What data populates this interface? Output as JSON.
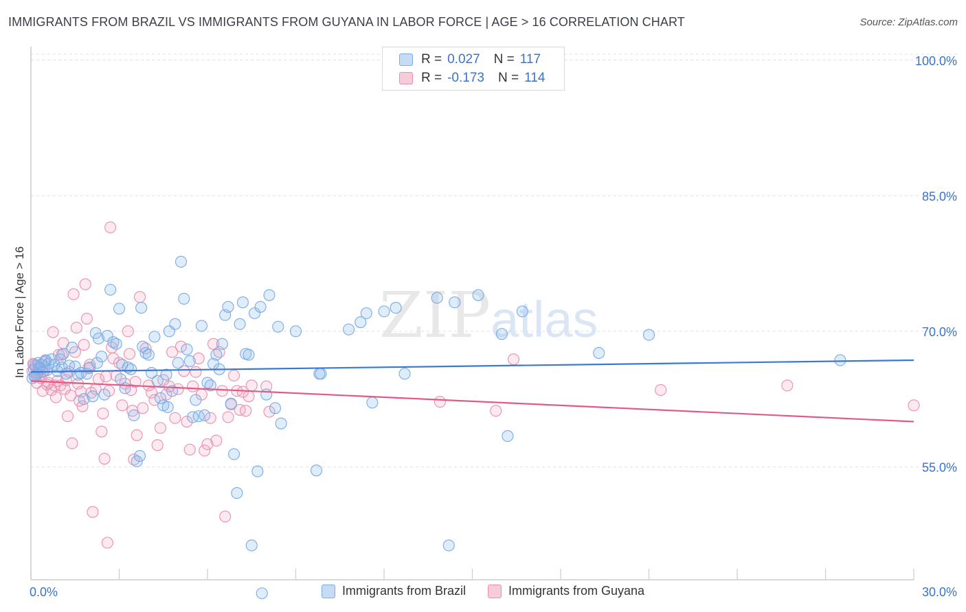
{
  "header": {
    "title": "IMMIGRANTS FROM BRAZIL VS IMMIGRANTS FROM GUYANA IN LABOR FORCE | AGE > 16 CORRELATION CHART",
    "source": "Source: ZipAtlas.com"
  },
  "watermark": {
    "zip": "ZIP",
    "atlas": "atlas"
  },
  "legend": {
    "rows": [
      {
        "r_label": "R = ",
        "r_value": "0.027",
        "n_label": "N = ",
        "n_value": "117",
        "color": "#7aaae6",
        "fill": "#c5dbf6"
      },
      {
        "r_label": "R = ",
        "r_value": "-0.173",
        "n_label": "N = ",
        "n_value": "114",
        "color": "#ea8fab",
        "fill": "#f8cbd8"
      }
    ]
  },
  "bottom_legend": {
    "items": [
      {
        "label": "Immigrants from Brazil",
        "color": "#7aaae6",
        "fill": "#c5dbf6"
      },
      {
        "label": "Immigrants from Guyana",
        "color": "#ea8fab",
        "fill": "#f8cbd8"
      }
    ]
  },
  "chart_data": {
    "type": "scatter",
    "title": "IMMIGRANTS FROM BRAZIL VS IMMIGRANTS FROM GUYANA IN LABOR FORCE | AGE > 16 CORRELATION CHART",
    "xlabel": "",
    "ylabel": "In Labor Force | Age > 16",
    "xlim": [
      0,
      30
    ],
    "ylim": [
      42.5,
      101.5
    ],
    "x_tick_labels": [
      "0.0%",
      "30.0%"
    ],
    "y_ticks": [
      55,
      70,
      85,
      100
    ],
    "y_tick_labels": [
      "55.0%",
      "70.0%",
      "85.0%",
      "100.0%"
    ],
    "grid": true,
    "series": [
      {
        "name": "Immigrants from Brazil",
        "color": "#3a78d2",
        "trend": {
          "x": [
            0,
            30
          ],
          "y": [
            65.5,
            66.8
          ]
        },
        "points": [
          [
            0.1,
            65.8
          ],
          [
            0.15,
            66.2
          ],
          [
            0.2,
            65.2
          ],
          [
            0.25,
            66.5
          ],
          [
            0.3,
            65.9
          ],
          [
            0.35,
            66.3
          ],
          [
            0.4,
            65.5
          ],
          [
            0.45,
            66.6
          ],
          [
            0.5,
            66.8
          ],
          [
            0.55,
            65.7
          ],
          [
            0.6,
            66.4
          ],
          [
            0.7,
            66.9
          ],
          [
            0.8,
            66.3
          ],
          [
            0.9,
            65.6
          ],
          [
            1.0,
            66.9
          ],
          [
            1.05,
            66.0
          ],
          [
            1.1,
            67.5
          ],
          [
            1.2,
            65.3
          ],
          [
            1.3,
            66.2
          ],
          [
            1.4,
            68.2
          ],
          [
            1.5,
            66.1
          ],
          [
            1.6,
            65.2
          ],
          [
            1.7,
            65.4
          ],
          [
            1.8,
            62.5
          ],
          [
            1.9,
            65.3
          ],
          [
            2.0,
            66.0
          ],
          [
            2.1,
            62.8
          ],
          [
            2.2,
            69.8
          ],
          [
            2.25,
            66.5
          ],
          [
            2.3,
            69.2
          ],
          [
            2.4,
            67.2
          ],
          [
            2.5,
            63.0
          ],
          [
            2.6,
            69.5
          ],
          [
            2.7,
            74.6
          ],
          [
            2.8,
            68.8
          ],
          [
            2.9,
            68.6
          ],
          [
            3.0,
            72.5
          ],
          [
            3.05,
            64.7
          ],
          [
            3.1,
            66.3
          ],
          [
            3.2,
            63.7
          ],
          [
            3.3,
            66.0
          ],
          [
            3.4,
            65.8
          ],
          [
            3.5,
            60.7
          ],
          [
            3.6,
            55.6
          ],
          [
            3.7,
            56.2
          ],
          [
            3.75,
            72.6
          ],
          [
            3.8,
            68.3
          ],
          [
            3.9,
            67.6
          ],
          [
            4.0,
            67.4
          ],
          [
            4.1,
            65.4
          ],
          [
            4.2,
            69.4
          ],
          [
            4.3,
            64.5
          ],
          [
            4.4,
            62.6
          ],
          [
            4.5,
            61.8
          ],
          [
            4.6,
            65.2
          ],
          [
            4.65,
            61.6
          ],
          [
            4.7,
            70.0
          ],
          [
            4.8,
            63.4
          ],
          [
            4.9,
            70.8
          ],
          [
            5.0,
            66.5
          ],
          [
            5.1,
            77.7
          ],
          [
            5.2,
            73.6
          ],
          [
            5.3,
            68.0
          ],
          [
            5.4,
            66.7
          ],
          [
            5.5,
            60.5
          ],
          [
            5.6,
            62.4
          ],
          [
            5.7,
            60.6
          ],
          [
            5.8,
            70.6
          ],
          [
            5.9,
            60.7
          ],
          [
            6.0,
            64.3
          ],
          [
            6.1,
            64.0
          ],
          [
            6.2,
            66.4
          ],
          [
            6.3,
            67.4
          ],
          [
            6.4,
            65.8
          ],
          [
            6.5,
            68.6
          ],
          [
            6.6,
            71.8
          ],
          [
            6.7,
            72.7
          ],
          [
            6.8,
            62.0
          ],
          [
            6.9,
            56.4
          ],
          [
            7.0,
            52.1
          ],
          [
            7.1,
            70.8
          ],
          [
            7.2,
            73.2
          ],
          [
            7.3,
            67.5
          ],
          [
            7.4,
            67.4
          ],
          [
            7.5,
            46.3
          ],
          [
            7.6,
            72.0
          ],
          [
            7.7,
            54.5
          ],
          [
            7.8,
            72.7
          ],
          [
            7.85,
            41.0
          ],
          [
            8.0,
            63.0
          ],
          [
            8.1,
            74.0
          ],
          [
            8.3,
            61.5
          ],
          [
            8.4,
            70.5
          ],
          [
            8.5,
            59.8
          ],
          [
            9.0,
            70.0
          ],
          [
            9.7,
            54.6
          ],
          [
            9.8,
            65.3
          ],
          [
            9.85,
            65.3
          ],
          [
            10.8,
            70.2
          ],
          [
            11.2,
            71.0
          ],
          [
            11.4,
            72.0
          ],
          [
            11.6,
            62.1
          ],
          [
            12.0,
            72.2
          ],
          [
            12.4,
            72.6
          ],
          [
            12.7,
            65.3
          ],
          [
            13.8,
            73.7
          ],
          [
            14.2,
            46.3
          ],
          [
            14.4,
            73.2
          ],
          [
            15.2,
            74.0
          ],
          [
            16.0,
            69.7
          ],
          [
            16.2,
            58.4
          ],
          [
            16.7,
            72.2
          ],
          [
            19.3,
            67.6
          ],
          [
            21.0,
            69.6
          ],
          [
            27.5,
            66.8
          ],
          [
            0.05,
            64.8
          ],
          [
            0.12,
            65.0
          ]
        ]
      },
      {
        "name": "Immigrants from Guyana",
        "color": "#e05a87",
        "trend": {
          "x": [
            0,
            30
          ],
          "y": [
            64.5,
            60.0
          ]
        },
        "points": [
          [
            0.1,
            66.3
          ],
          [
            0.15,
            65.1
          ],
          [
            0.2,
            64.3
          ],
          [
            0.25,
            66.2
          ],
          [
            0.3,
            65.2
          ],
          [
            0.35,
            64.8
          ],
          [
            0.4,
            63.4
          ],
          [
            0.45,
            65.6
          ],
          [
            0.5,
            66.7
          ],
          [
            0.55,
            64.1
          ],
          [
            0.6,
            64.3
          ],
          [
            0.7,
            63.5
          ],
          [
            0.75,
            69.9
          ],
          [
            0.8,
            64.0
          ],
          [
            0.85,
            62.7
          ],
          [
            0.9,
            64.5
          ],
          [
            0.95,
            67.4
          ],
          [
            1.0,
            64.0
          ],
          [
            1.05,
            67.4
          ],
          [
            1.1,
            68.7
          ],
          [
            1.15,
            63.6
          ],
          [
            1.2,
            64.6
          ],
          [
            1.25,
            60.6
          ],
          [
            1.3,
            65.5
          ],
          [
            1.35,
            62.9
          ],
          [
            1.4,
            57.6
          ],
          [
            1.45,
            74.1
          ],
          [
            1.5,
            67.7
          ],
          [
            1.55,
            70.4
          ],
          [
            1.6,
            64.2
          ],
          [
            1.65,
            62.3
          ],
          [
            1.7,
            63.3
          ],
          [
            1.75,
            61.7
          ],
          [
            1.8,
            68.5
          ],
          [
            1.85,
            75.2
          ],
          [
            1.9,
            71.4
          ],
          [
            1.95,
            65.9
          ],
          [
            2.0,
            66.3
          ],
          [
            2.05,
            63.2
          ],
          [
            2.1,
            50.0
          ],
          [
            2.2,
            63.6
          ],
          [
            2.3,
            64.7
          ],
          [
            2.4,
            58.9
          ],
          [
            2.45,
            60.9
          ],
          [
            2.5,
            55.9
          ],
          [
            2.55,
            65.0
          ],
          [
            2.6,
            46.6
          ],
          [
            2.65,
            63.4
          ],
          [
            2.7,
            81.5
          ],
          [
            2.75,
            68.2
          ],
          [
            2.8,
            67.0
          ],
          [
            2.9,
            65.1
          ],
          [
            3.0,
            66.5
          ],
          [
            3.1,
            61.8
          ],
          [
            3.2,
            64.2
          ],
          [
            3.3,
            70.0
          ],
          [
            3.35,
            67.5
          ],
          [
            3.4,
            63.5
          ],
          [
            3.45,
            61.2
          ],
          [
            3.5,
            55.8
          ],
          [
            3.55,
            64.4
          ],
          [
            3.6,
            58.5
          ],
          [
            3.7,
            73.8
          ],
          [
            3.8,
            61.5
          ],
          [
            3.9,
            68.1
          ],
          [
            4.0,
            64.0
          ],
          [
            4.1,
            63.2
          ],
          [
            4.2,
            62.4
          ],
          [
            4.3,
            57.4
          ],
          [
            4.4,
            59.3
          ],
          [
            4.5,
            64.6
          ],
          [
            4.6,
            63.0
          ],
          [
            4.7,
            63.9
          ],
          [
            4.8,
            67.7
          ],
          [
            4.9,
            60.4
          ],
          [
            5.0,
            63.6
          ],
          [
            5.1,
            68.3
          ],
          [
            5.2,
            65.6
          ],
          [
            5.3,
            60.0
          ],
          [
            5.4,
            56.9
          ],
          [
            5.5,
            63.9
          ],
          [
            5.6,
            65.5
          ],
          [
            5.7,
            67.0
          ],
          [
            5.8,
            63.0
          ],
          [
            5.9,
            56.8
          ],
          [
            6.0,
            57.5
          ],
          [
            6.1,
            60.4
          ],
          [
            6.2,
            68.6
          ],
          [
            6.3,
            57.9
          ],
          [
            6.4,
            67.7
          ],
          [
            6.5,
            63.4
          ],
          [
            6.6,
            49.5
          ],
          [
            6.7,
            60.5
          ],
          [
            6.8,
            61.9
          ],
          [
            6.9,
            65.1
          ],
          [
            7.0,
            63.4
          ],
          [
            7.1,
            61.3
          ],
          [
            7.2,
            63.3
          ],
          [
            7.3,
            61.2
          ],
          [
            7.4,
            62.8
          ],
          [
            7.5,
            64.0
          ],
          [
            8.0,
            63.9
          ],
          [
            8.1,
            61.1
          ],
          [
            13.9,
            62.2
          ],
          [
            15.8,
            61.2
          ],
          [
            16.4,
            66.9
          ],
          [
            21.4,
            63.5
          ],
          [
            25.7,
            64.0
          ],
          [
            30.0,
            61.8
          ],
          [
            0.05,
            65.6
          ],
          [
            0.08,
            66.4
          ],
          [
            0.18,
            65.4
          ],
          [
            0.28,
            66.0
          ],
          [
            0.38,
            65.8
          ]
        ]
      }
    ]
  }
}
